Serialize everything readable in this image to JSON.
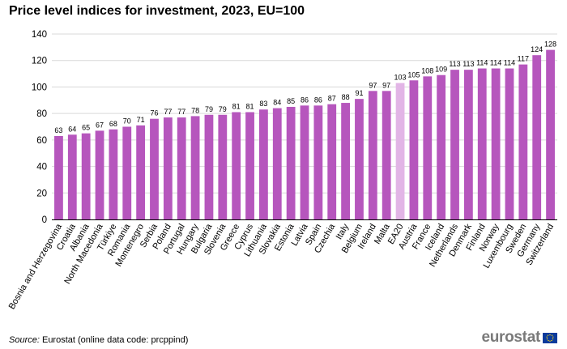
{
  "chart_data": {
    "type": "bar",
    "title": "Price level indices for investment, 2023, EU=100",
    "xlabel": "",
    "ylabel": "",
    "ylim": [
      0,
      140
    ],
    "yticks": [
      0,
      20,
      40,
      60,
      80,
      100,
      120,
      140
    ],
    "grid": true,
    "categories": [
      "Bosnia and Herzegovina",
      "Croatia",
      "Albania",
      "North Macedonia",
      "Türkiye",
      "Romania",
      "Montenegro",
      "Serbia",
      "Poland",
      "Portugal",
      "Hungary",
      "Bulgaria",
      "Slovenia",
      "Greece",
      "Cyprus",
      "Lithuania",
      "Slovakia",
      "Estonia",
      "Latvia",
      "Spain",
      "Czechia",
      "Italy",
      "Belgium",
      "Ireland",
      "Malta",
      "EA20",
      "Austria",
      "France",
      "Iceland",
      "Netherlands",
      "Denmark",
      "Finland",
      "Norway",
      "Luxembourg",
      "Sweden",
      "Germany",
      "Switzerland"
    ],
    "values": [
      63,
      64,
      65,
      67,
      68,
      70,
      71,
      76,
      77,
      77,
      78,
      79,
      79,
      81,
      81,
      83,
      84,
      85,
      86,
      86,
      87,
      88,
      91,
      97,
      97,
      103,
      105,
      108,
      109,
      113,
      113,
      114,
      114,
      114,
      117,
      124,
      128
    ],
    "highlight": [
      "EA20"
    ],
    "colors": {
      "bar": "#b656bd",
      "highlight": "#e2b5e6",
      "grid": "#d9d9d9",
      "axis": "#000000"
    }
  },
  "footer": {
    "source_label": "Source:",
    "source_text": " Eurostat (online data code: prcppind)"
  },
  "logo": {
    "text": "eurostat",
    "icon": "eu-flag-icon"
  }
}
